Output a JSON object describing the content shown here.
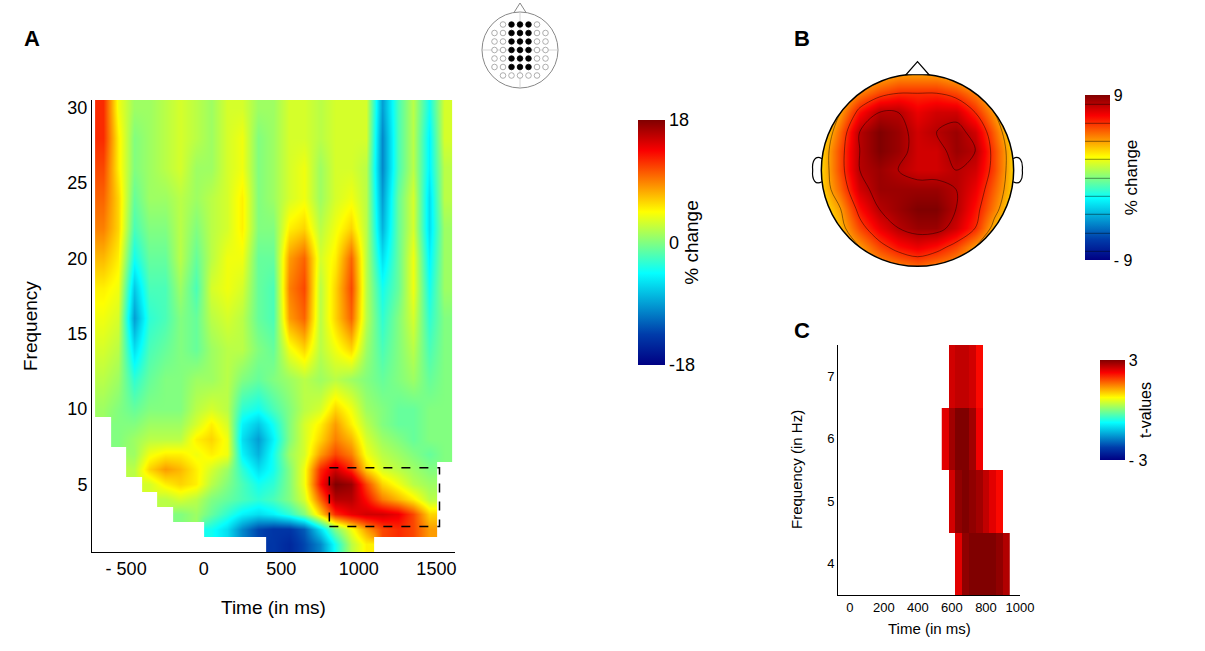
{
  "chart_data": [
    {
      "type": "heatmap",
      "title": "A",
      "x_label": "Time (in ms)",
      "y_label": "Frequency",
      "x": [
        -650,
        -550,
        -450,
        -350,
        -250,
        -150,
        -50,
        50,
        150,
        250,
        350,
        450,
        550,
        650,
        750,
        850,
        950,
        1050,
        1150,
        1250,
        1350,
        1450,
        1550
      ],
      "y": [
        1,
        2,
        3,
        4,
        5,
        6,
        7,
        8,
        9,
        10,
        12,
        14,
        16,
        18,
        20,
        22,
        24,
        26,
        28,
        30
      ],
      "z": [
        [
          null,
          null,
          null,
          null,
          null,
          null,
          null,
          null,
          null,
          null,
          null,
          -14,
          -15,
          -13,
          -10,
          -4,
          2,
          5,
          null,
          null,
          null,
          null,
          null
        ],
        [
          null,
          null,
          null,
          null,
          null,
          null,
          null,
          -4,
          -6,
          -10,
          -13,
          -14,
          -14,
          -12,
          -6,
          0,
          4,
          8,
          11,
          12,
          11,
          8,
          null
        ],
        [
          null,
          null,
          null,
          null,
          null,
          0,
          1,
          -1,
          -3,
          -5,
          -6,
          -5,
          -3,
          0,
          6,
          12,
          14,
          15,
          15,
          14,
          11,
          6,
          null
        ],
        [
          null,
          null,
          null,
          null,
          2,
          3,
          2,
          0,
          -1,
          -2,
          -3,
          -2,
          0,
          3,
          10,
          16,
          16,
          13,
          9,
          7,
          5,
          2,
          null
        ],
        [
          null,
          null,
          null,
          3,
          5,
          6,
          5,
          2,
          0,
          -2,
          -4,
          -3,
          0,
          4,
          13,
          18,
          17,
          11,
          6,
          4,
          2,
          1,
          null
        ],
        [
          null,
          null,
          2,
          6,
          8,
          7,
          5,
          3,
          1,
          -3,
          -6,
          -4,
          0,
          4,
          12,
          15,
          12,
          6,
          3,
          2,
          1,
          0,
          null
        ],
        [
          null,
          null,
          1,
          4,
          5,
          5,
          4,
          5,
          4,
          -5,
          -8,
          -4,
          1,
          3,
          8,
          11,
          9,
          4,
          2,
          1,
          0,
          -1,
          0
        ],
        [
          null,
          0,
          1,
          2,
          2,
          2,
          5,
          6,
          4,
          -6,
          -9,
          -5,
          0,
          3,
          6,
          9,
          7,
          3,
          1,
          0,
          -1,
          0,
          0
        ],
        [
          null,
          0,
          0,
          1,
          1,
          1,
          3,
          5,
          3,
          -5,
          -7,
          -4,
          0,
          3,
          5,
          8,
          5,
          2,
          0,
          -1,
          -1,
          0,
          0
        ],
        [
          1,
          0,
          -1,
          0,
          0,
          0,
          2,
          3,
          2,
          -3,
          -4,
          -2,
          0,
          2,
          3,
          6,
          4,
          1,
          0,
          -1,
          -1,
          0,
          0
        ],
        [
          2,
          1,
          -3,
          -1,
          0,
          0,
          1,
          1,
          2,
          0,
          -1,
          0,
          1,
          2,
          1,
          2,
          1,
          0,
          -1,
          0,
          1,
          -1,
          0
        ],
        [
          3,
          2,
          -6,
          -2,
          -1,
          0,
          -1,
          1,
          2,
          2,
          0,
          -1,
          4,
          6,
          2,
          4,
          6,
          1,
          -2,
          0,
          2,
          -2,
          0
        ],
        [
          4,
          3,
          -9,
          -3,
          -2,
          0,
          -1,
          2,
          3,
          2,
          -1,
          -2,
          8,
          10,
          2,
          6,
          10,
          2,
          -3,
          0,
          3,
          -3,
          0
        ],
        [
          5,
          4,
          -7,
          -2,
          -2,
          1,
          -2,
          3,
          4,
          3,
          -1,
          -2,
          9,
          11,
          2,
          6,
          11,
          2,
          -4,
          -1,
          4,
          -4,
          1
        ],
        [
          7,
          5,
          -4,
          -1,
          -1,
          2,
          -1,
          2,
          4,
          4,
          -1,
          -1,
          8,
          10,
          3,
          5,
          10,
          2,
          -6,
          -1,
          4,
          -5,
          1
        ],
        [
          9,
          6,
          -2,
          0,
          0,
          2,
          0,
          2,
          3,
          5,
          0,
          0,
          5,
          6,
          2,
          4,
          6,
          2,
          -8,
          -1,
          3,
          -6,
          1
        ],
        [
          10,
          6,
          -1,
          1,
          1,
          2,
          1,
          2,
          3,
          5,
          0,
          1,
          3,
          4,
          1,
          3,
          4,
          2,
          -9,
          -1,
          3,
          -6,
          2
        ],
        [
          11,
          5,
          0,
          1,
          2,
          3,
          1,
          1,
          3,
          4,
          0,
          1,
          3,
          4,
          1,
          3,
          3,
          2,
          -10,
          -2,
          2,
          -5,
          2
        ],
        [
          12,
          5,
          0,
          1,
          2,
          3,
          2,
          1,
          3,
          4,
          0,
          1,
          3,
          3,
          2,
          3,
          3,
          3,
          -10,
          -2,
          2,
          -5,
          3
        ],
        [
          12,
          4,
          1,
          1,
          2,
          3,
          2,
          1,
          3,
          3,
          1,
          1,
          3,
          3,
          2,
          3,
          3,
          3,
          -9,
          -2,
          2,
          -4,
          3
        ]
      ],
      "xlim": [
        -720,
        1620
      ],
      "xticks": [
        {
          "value": -500,
          "label": "- 500"
        },
        0,
        500,
        1000,
        1500
      ],
      "ylim": [
        0.5,
        30.5
      ],
      "yticks": [
        5,
        10,
        15,
        20,
        25,
        30
      ],
      "color": "Jet",
      "colorbar": {
        "title": "% change",
        "range": [
          -18,
          18
        ],
        "ticks": [
          -18,
          0,
          18
        ]
      },
      "highlight": {
        "x": [
          810,
          1520
        ],
        "y": [
          2.2,
          6.1
        ],
        "line_style": "dashed"
      }
    },
    {
      "type": "contour",
      "title": "B",
      "tick_labels": false,
      "x": [
        -1,
        -0.8,
        -0.6,
        -0.4,
        -0.2,
        0,
        0.2,
        0.4,
        0.6,
        0.8,
        1
      ],
      "y": [
        -1,
        -0.8,
        -0.6,
        -0.4,
        -0.2,
        0,
        0.2,
        0.4,
        0.6,
        0.8,
        1
      ],
      "z": [
        [
          null,
          null,
          3,
          4,
          4.5,
          5,
          4.5,
          4,
          3,
          null,
          null
        ],
        [
          null,
          3,
          4,
          5.5,
          6.5,
          7,
          6.5,
          5.5,
          4,
          3,
          null
        ],
        [
          2,
          3.5,
          5.5,
          7,
          8,
          8.5,
          8.5,
          7.5,
          6,
          3.5,
          2
        ],
        [
          2.5,
          4,
          6.5,
          8,
          8.5,
          9,
          9,
          8,
          6.5,
          4.5,
          2.5
        ],
        [
          3,
          5,
          7.5,
          8.5,
          8.5,
          8.5,
          8.5,
          8,
          7,
          5,
          3
        ],
        [
          3,
          5.5,
          8,
          8.5,
          8,
          7.5,
          7.5,
          8,
          7.5,
          5.5,
          3
        ],
        [
          3,
          5.5,
          8,
          9,
          8.5,
          7.5,
          7.5,
          8.5,
          8,
          5.5,
          3
        ],
        [
          2.5,
          5,
          8,
          9,
          8.5,
          7.5,
          8,
          8.5,
          7.5,
          5,
          2.5
        ],
        [
          2,
          4,
          6.5,
          8,
          8,
          7,
          7.5,
          7.5,
          6,
          4,
          2
        ],
        [
          null,
          3,
          4.5,
          5.5,
          6,
          6,
          6,
          5.5,
          4.5,
          3,
          null
        ],
        [
          null,
          null,
          2.5,
          3.5,
          4,
          4,
          4,
          3.5,
          2.5,
          null,
          null
        ]
      ],
      "color": "Jet",
      "colorbar": {
        "title": "% change",
        "range": [
          -9,
          9
        ],
        "ticks": [
          {
            "value": -9,
            "label": "- 9"
          },
          9
        ]
      }
    },
    {
      "type": "heatmap",
      "title": "C",
      "x_label": "Time (in ms)",
      "y_label": "Frequency (in Hz)",
      "x": [
        560,
        600,
        640,
        680,
        720,
        760,
        800,
        840,
        880,
        920
      ],
      "y": [
        4,
        5,
        6,
        7
      ],
      "z": [
        [
          null,
          null,
          2.4,
          2.9,
          3,
          3,
          3,
          3,
          2.9,
          2.7
        ],
        [
          null,
          2.5,
          2.9,
          3,
          2.9,
          2.8,
          2.6,
          2.4,
          2.2,
          null
        ],
        [
          2.4,
          2.8,
          3,
          3,
          2.8,
          2.3,
          null,
          null,
          null,
          null
        ],
        [
          null,
          2.5,
          2.6,
          2.6,
          2.5,
          2.2,
          null,
          null,
          null,
          null
        ]
      ],
      "xlim": [
        -70,
        1000
      ],
      "xticks": [
        0,
        200,
        400,
        600,
        800,
        1000
      ],
      "ylim": [
        3.5,
        7.5
      ],
      "yticks": [
        4,
        5,
        6,
        7
      ],
      "color": "Jet",
      "colorbar": {
        "title": "t-values",
        "range": [
          -3,
          3
        ],
        "ticks": [
          {
            "value": -3,
            "label": "- 3"
          },
          3
        ]
      }
    }
  ]
}
